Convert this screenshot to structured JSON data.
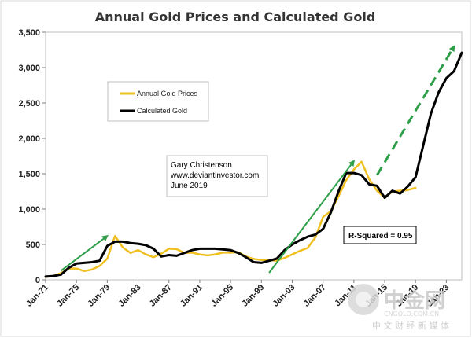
{
  "chart_data": {
    "type": "line",
    "title": "Annual Gold Prices and Calculated Gold",
    "ylim": [
      0,
      3500
    ],
    "ytick_labels": [
      "0",
      "500",
      "1,000",
      "1,500",
      "2,000",
      "2,500",
      "3,000",
      "3,500"
    ],
    "ytick_values": [
      0,
      500,
      1000,
      1500,
      2000,
      2500,
      3000,
      3500
    ],
    "xlim": [
      1971,
      2025
    ],
    "xtick_labels": [
      "Jan-71",
      "Jan-75",
      "Jan-79",
      "Jan-83",
      "Jan-87",
      "Jan-91",
      "Jan-95",
      "Jan-99",
      "Jan-03",
      "Jan-07",
      "Jan-11",
      "Jan-15",
      "Jan-19",
      "Jan-23"
    ],
    "xtick_values": [
      1971,
      1975,
      1979,
      1983,
      1987,
      1991,
      1995,
      1999,
      2003,
      2007,
      2011,
      2015,
      2019,
      2023
    ],
    "grid": false,
    "legend_position": "upper-left",
    "series": [
      {
        "name": "Annual Gold Prices",
        "color": "#f0c020",
        "x": [
          1971,
          1972,
          1973,
          1974,
          1975,
          1976,
          1977,
          1978,
          1979,
          1980,
          1981,
          1982,
          1983,
          1984,
          1985,
          1986,
          1987,
          1988,
          1989,
          1990,
          1991,
          1992,
          1993,
          1994,
          1995,
          1996,
          1997,
          1998,
          1999,
          2000,
          2001,
          2002,
          2003,
          2004,
          2005,
          2006,
          2007,
          2008,
          2009,
          2010,
          2011,
          2012,
          2013,
          2014,
          2015,
          2016,
          2017,
          2018,
          2019
        ],
        "y": [
          40,
          55,
          95,
          160,
          160,
          125,
          145,
          195,
          300,
          620,
          460,
          380,
          420,
          360,
          320,
          370,
          440,
          435,
          380,
          385,
          360,
          345,
          360,
          385,
          385,
          390,
          330,
          295,
          280,
          280,
          270,
          310,
          360,
          410,
          450,
          600,
          890,
          970,
          1180,
          1410,
          1560,
          1670,
          1420,
          1260,
          1160,
          1250,
          1260,
          1270,
          1300
        ]
      },
      {
        "name": "Calculated Gold",
        "color": "#000000",
        "x": [
          1971,
          1972,
          1973,
          1974,
          1975,
          1976,
          1977,
          1978,
          1979,
          1980,
          1981,
          1982,
          1983,
          1984,
          1985,
          1986,
          1987,
          1988,
          1989,
          1990,
          1991,
          1992,
          1993,
          1994,
          1995,
          1996,
          1997,
          1998,
          1999,
          2000,
          2001,
          2002,
          2003,
          2004,
          2005,
          2006,
          2007,
          2008,
          2009,
          2010,
          2011,
          2012,
          2013,
          2014,
          2015,
          2016,
          2017,
          2018,
          2019,
          2020,
          2021,
          2022,
          2023,
          2024,
          2025
        ],
        "y": [
          45,
          55,
          75,
          170,
          230,
          240,
          250,
          270,
          480,
          540,
          540,
          520,
          510,
          490,
          440,
          330,
          350,
          340,
          380,
          420,
          440,
          440,
          440,
          430,
          420,
          380,
          320,
          250,
          240,
          270,
          300,
          420,
          500,
          560,
          610,
          640,
          720,
          950,
          1250,
          1510,
          1510,
          1480,
          1350,
          1330,
          1160,
          1260,
          1220,
          1320,
          1450,
          1900,
          2350,
          2650,
          2850,
          2950,
          3210
        ]
      }
    ],
    "legend": [
      {
        "label": "Annual Gold Prices",
        "color": "#f0c020"
      },
      {
        "label": "Calculated Gold",
        "color": "#000000"
      }
    ],
    "annotations": {
      "author_lines": [
        "Gary Christenson",
        "www.deviantinvestor.com",
        "June 2019"
      ],
      "r_squared": "R-Squared = 0.95",
      "green_arrows": [
        {
          "style": "solid",
          "from": [
            1973,
            130
          ],
          "to": [
            1979,
            620
          ]
        },
        {
          "style": "solid",
          "from": [
            2000,
            100
          ],
          "to": [
            2011,
            1680
          ]
        },
        {
          "style": "dashed",
          "from": [
            2014,
            1480
          ],
          "to": [
            2024,
            3300
          ]
        }
      ],
      "arrow_color": "#2e9e48"
    }
  },
  "watermark": {
    "main": "中金网",
    "sub": "中 文 财 经 新 媒 体",
    "url": "CNGOLD.COM.CN",
    "color": "#c8c8c8"
  }
}
